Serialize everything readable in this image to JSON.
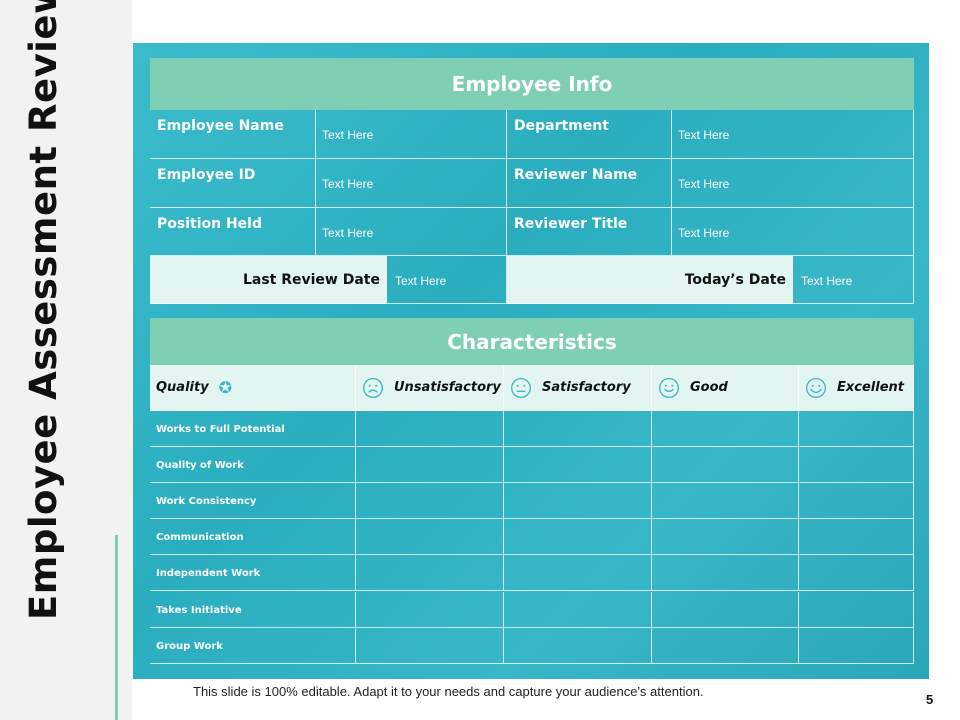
{
  "title": "Employee Assessment Review Chart",
  "employee_info": {
    "header": "Employee  Info",
    "rows": [
      {
        "label1": "Employee Name",
        "value1": "Text Here",
        "label2": "Department",
        "value2": "Text Here"
      },
      {
        "label1": "Employee ID",
        "value1": "Text Here",
        "label2": "Reviewer Name",
        "value2": "Text Here"
      },
      {
        "label1": "Position Held",
        "value1": "Text Here",
        "label2": "Reviewer Title",
        "value2": "Text Here"
      }
    ],
    "last_review_label": "Last Review Date",
    "last_review_value": "Text Here",
    "today_label": "Today’s Date",
    "today_value": "Text Here"
  },
  "characteristics": {
    "header": "Characteristics",
    "quality_label": "Quality",
    "ratings": [
      {
        "label": "Unsatisfactory",
        "icon": "sad-face-icon"
      },
      {
        "label": "Satisfactory",
        "icon": "neutral-face-icon"
      },
      {
        "label": "Good",
        "icon": "smile-face-icon"
      },
      {
        "label": "Excellent",
        "icon": "happy-face-icon"
      }
    ],
    "rows": [
      "Works to Full Potential",
      "Quality  of Work",
      "Work Consistency",
      "Communication",
      "Independent Work",
      "Takes Initiative",
      "Group Work"
    ]
  },
  "footer": "This slide is 100% editable. Adapt it to your needs and capture your audience's attention.",
  "page_number": "5",
  "colors": {
    "accent": "#7fcfb5",
    "teal": "#2fb2c3"
  }
}
